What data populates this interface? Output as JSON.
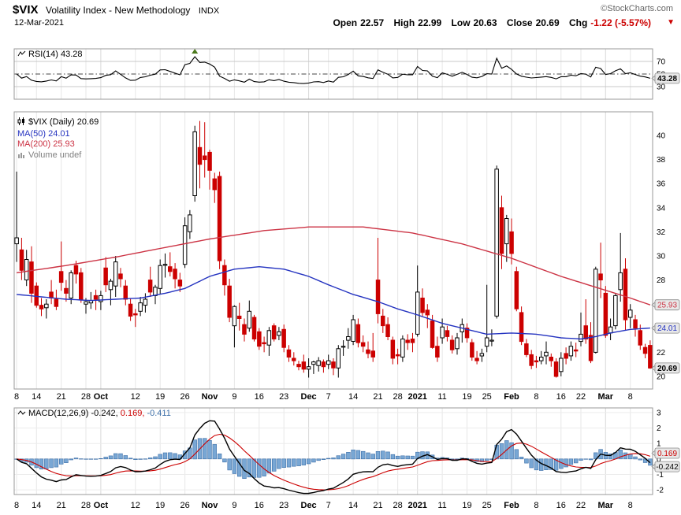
{
  "header": {
    "symbol": "$VIX",
    "title": "Volatility Index - New Methodology",
    "exchange": "INDX",
    "copyright": "©StockCharts.com",
    "date": "12-Mar-2021",
    "quote": {
      "open_label": "Open",
      "open": "22.57",
      "high_label": "High",
      "high": "22.99",
      "low_label": "Low",
      "low": "20.63",
      "close_label": "Close",
      "close": "20.69",
      "chg_label": "Chg",
      "chg": "-1.22 (-5.57%)"
    }
  },
  "legends": {
    "rsi": "RSI(14) 43.28",
    "price": "$VIX (Daily) 20.69",
    "ma50": "MA(50) 24.01",
    "ma200": "MA(200) 25.93",
    "volume": "Volume undef",
    "macd_name": "MACD(12,26,9)",
    "macd_value": "-0.242,",
    "signal_value": "0.169,",
    "hist_value": "-0.411"
  },
  "badges": {
    "rsi": "43.28",
    "ma200": "25.93",
    "ma50": "24.01",
    "close": "20.69",
    "macd_signal": "0.169",
    "macd_line": "-0.242"
  },
  "axes": {
    "rsi_yticks": [
      70,
      50,
      30
    ],
    "price_yticks": [
      40,
      38,
      36,
      34,
      32,
      30,
      28,
      26,
      24,
      22,
      20
    ],
    "macd_yticks": [
      3,
      2,
      1,
      0,
      -1,
      -2
    ],
    "xticks": [
      {
        "l": "8",
        "i": 0
      },
      {
        "l": "14",
        "i": 4
      },
      {
        "l": "21",
        "i": 9
      },
      {
        "l": "28",
        "i": 14
      },
      {
        "l": "Oct",
        "i": 17,
        "b": 1
      },
      {
        "l": "12",
        "i": 24
      },
      {
        "l": "19",
        "i": 29
      },
      {
        "l": "26",
        "i": 34
      },
      {
        "l": "Nov",
        "i": 39,
        "b": 1
      },
      {
        "l": "9",
        "i": 44
      },
      {
        "l": "16",
        "i": 49
      },
      {
        "l": "23",
        "i": 54
      },
      {
        "l": "Dec",
        "i": 59,
        "b": 1
      },
      {
        "l": "7",
        "i": 63
      },
      {
        "l": "14",
        "i": 68
      },
      {
        "l": "21",
        "i": 73
      },
      {
        "l": "28",
        "i": 77
      },
      {
        "l": "2021",
        "i": 81,
        "b": 1
      },
      {
        "l": "11",
        "i": 86
      },
      {
        "l": "19",
        "i": 91
      },
      {
        "l": "25",
        "i": 95
      },
      {
        "l": "Feb",
        "i": 100,
        "b": 1
      },
      {
        "l": "8",
        "i": 105
      },
      {
        "l": "16",
        "i": 110
      },
      {
        "l": "22",
        "i": 114
      },
      {
        "l": "Mar",
        "i": 119,
        "b": 1
      },
      {
        "l": "8",
        "i": 124
      }
    ]
  },
  "colors": {
    "candle_down": "#cc0000",
    "candle_up_fill": "#ffffff",
    "candle_up_stroke": "#000000",
    "ma50": "#2433c0",
    "ma200": "#cc3344",
    "rsi_line": "#000000",
    "macd_line": "#000000",
    "signal_line": "#cc0000",
    "hist_fill": "#79a7d4",
    "hist_stroke": "#3d6fa8",
    "grid": "#e7e7e7",
    "grid_major": "#d8d8d8",
    "border": "#999999",
    "badge_bg": "#e8e8e8",
    "badge_border": "#888888",
    "hline": "#c8c8c8",
    "dashdot": "#444444",
    "marker": "#4c7a1e",
    "chg": "#cc0000"
  },
  "chart_data": {
    "type": "candlestick",
    "title": "$VIX (Daily)",
    "rsi_period": 14,
    "macd_params": [
      12,
      26,
      9
    ],
    "last_values": {
      "close": 20.69,
      "rsi": 43.28,
      "ma50": 24.01,
      "ma200": 25.93,
      "macd": -0.242,
      "signal": 0.169,
      "histogram": -0.411
    },
    "price_range": [
      18.95,
      41.96
    ],
    "rsi_range": [
      10,
      90
    ],
    "macd_range": [
      -2.3,
      3.3
    ],
    "rsi_marker_index": 36,
    "dates": [
      "2020-09-08",
      "2020-09-09",
      "2020-09-10",
      "2020-09-11",
      "2020-09-14",
      "2020-09-15",
      "2020-09-16",
      "2020-09-17",
      "2020-09-18",
      "2020-09-21",
      "2020-09-22",
      "2020-09-23",
      "2020-09-24",
      "2020-09-25",
      "2020-09-28",
      "2020-09-29",
      "2020-09-30",
      "2020-10-01",
      "2020-10-02",
      "2020-10-05",
      "2020-10-06",
      "2020-10-07",
      "2020-10-08",
      "2020-10-09",
      "2020-10-12",
      "2020-10-13",
      "2020-10-14",
      "2020-10-15",
      "2020-10-16",
      "2020-10-19",
      "2020-10-20",
      "2020-10-21",
      "2020-10-22",
      "2020-10-23",
      "2020-10-26",
      "2020-10-27",
      "2020-10-28",
      "2020-10-29",
      "2020-10-30",
      "2020-11-02",
      "2020-11-03",
      "2020-11-04",
      "2020-11-05",
      "2020-11-06",
      "2020-11-09",
      "2020-11-10",
      "2020-11-11",
      "2020-11-12",
      "2020-11-13",
      "2020-11-16",
      "2020-11-17",
      "2020-11-18",
      "2020-11-19",
      "2020-11-20",
      "2020-11-23",
      "2020-11-24",
      "2020-11-25",
      "2020-11-27",
      "2020-11-30",
      "2020-12-01",
      "2020-12-02",
      "2020-12-03",
      "2020-12-04",
      "2020-12-07",
      "2020-12-08",
      "2020-12-09",
      "2020-12-10",
      "2020-12-11",
      "2020-12-14",
      "2020-12-15",
      "2020-12-16",
      "2020-12-17",
      "2020-12-18",
      "2020-12-21",
      "2020-12-22",
      "2020-12-23",
      "2020-12-24",
      "2020-12-28",
      "2020-12-29",
      "2020-12-30",
      "2020-12-31",
      "2021-01-04",
      "2021-01-05",
      "2021-01-06",
      "2021-01-07",
      "2021-01-08",
      "2021-01-11",
      "2021-01-12",
      "2021-01-13",
      "2021-01-14",
      "2021-01-15",
      "2021-01-19",
      "2021-01-20",
      "2021-01-21",
      "2021-01-22",
      "2021-01-25",
      "2021-01-26",
      "2021-01-27",
      "2021-01-28",
      "2021-01-29",
      "2021-02-01",
      "2021-02-02",
      "2021-02-03",
      "2021-02-04",
      "2021-02-05",
      "2021-02-08",
      "2021-02-09",
      "2021-02-10",
      "2021-02-11",
      "2021-02-12",
      "2021-02-16",
      "2021-02-17",
      "2021-02-18",
      "2021-02-19",
      "2021-02-22",
      "2021-02-23",
      "2021-02-24",
      "2021-02-25",
      "2021-02-26",
      "2021-03-01",
      "2021-03-02",
      "2021-03-03",
      "2021-03-04",
      "2021-03-05",
      "2021-03-08",
      "2021-03-09",
      "2021-03-10",
      "2021-03-11",
      "2021-03-12"
    ],
    "ohlc": [
      [
        31.0,
        37.0,
        29.5,
        31.5
      ],
      [
        30.5,
        31.5,
        28.0,
        28.8
      ],
      [
        28.0,
        30.5,
        27.5,
        29.7
      ],
      [
        29.5,
        30.8,
        26.1,
        26.9
      ],
      [
        27.5,
        27.8,
        25.7,
        25.9
      ],
      [
        25.9,
        26.5,
        25.0,
        25.6
      ],
      [
        25.7,
        26.4,
        24.8,
        26.0
      ],
      [
        27.0,
        28.0,
        26.0,
        26.5
      ],
      [
        26.4,
        27.2,
        25.5,
        25.8
      ],
      [
        28.7,
        31.2,
        27.1,
        27.8
      ],
      [
        27.3,
        28.0,
        26.2,
        26.9
      ],
      [
        26.5,
        28.8,
        26.0,
        28.6
      ],
      [
        29.2,
        29.6,
        27.7,
        28.5
      ],
      [
        28.6,
        29.0,
        26.1,
        26.4
      ],
      [
        26.0,
        26.5,
        25.2,
        26.2
      ],
      [
        26.1,
        27.0,
        25.6,
        26.3
      ],
      [
        26.7,
        27.2,
        25.5,
        26.4
      ],
      [
        26.2,
        27.1,
        25.5,
        26.7
      ],
      [
        29.0,
        29.9,
        27.0,
        27.6
      ],
      [
        27.2,
        28.1,
        25.9,
        27.9
      ],
      [
        27.5,
        30.0,
        26.6,
        29.5
      ],
      [
        28.5,
        29.0,
        27.4,
        28.1
      ],
      [
        27.5,
        28.0,
        25.9,
        26.4
      ],
      [
        26.0,
        26.5,
        24.6,
        25.0
      ],
      [
        25.2,
        25.6,
        24.1,
        25.1
      ],
      [
        25.4,
        26.6,
        25.0,
        26.1
      ],
      [
        25.9,
        26.9,
        25.3,
        26.4
      ],
      [
        28.0,
        29.1,
        26.6,
        27.0
      ],
      [
        26.7,
        27.6,
        26.0,
        27.4
      ],
      [
        27.3,
        29.7,
        26.8,
        29.2
      ],
      [
        29.3,
        30.2,
        28.2,
        29.3
      ],
      [
        29.1,
        30.3,
        28.3,
        28.7
      ],
      [
        28.9,
        29.4,
        27.3,
        28.1
      ],
      [
        28.0,
        28.6,
        27.0,
        27.5
      ],
      [
        29.3,
        33.2,
        29.0,
        32.5
      ],
      [
        32.0,
        33.8,
        31.4,
        33.4
      ],
      [
        35.0,
        40.8,
        34.5,
        40.3
      ],
      [
        39.0,
        41.2,
        35.6,
        37.6
      ],
      [
        38.3,
        41.1,
        36.5,
        38.0
      ],
      [
        38.6,
        38.8,
        35.5,
        37.1
      ],
      [
        36.4,
        36.9,
        34.4,
        35.5
      ],
      [
        36.6,
        37.0,
        28.9,
        29.6
      ],
      [
        29.2,
        29.7,
        26.7,
        27.6
      ],
      [
        27.5,
        28.1,
        24.5,
        24.9
      ],
      [
        24.2,
        25.9,
        22.4,
        25.8
      ],
      [
        25.0,
        26.1,
        23.8,
        24.8
      ],
      [
        24.3,
        24.8,
        22.9,
        23.5
      ],
      [
        24.0,
        26.3,
        23.7,
        25.4
      ],
      [
        24.9,
        25.1,
        22.9,
        23.1
      ],
      [
        23.7,
        24.0,
        22.2,
        22.5
      ],
      [
        22.8,
        23.3,
        22.0,
        22.7
      ],
      [
        22.6,
        24.1,
        21.7,
        23.8
      ],
      [
        24.2,
        24.4,
        22.9,
        23.1
      ],
      [
        23.4,
        24.1,
        23.0,
        23.7
      ],
      [
        23.9,
        24.3,
        22.0,
        22.4
      ],
      [
        22.2,
        22.6,
        21.2,
        21.6
      ],
      [
        21.5,
        22.0,
        20.9,
        21.3
      ],
      [
        21.0,
        21.3,
        20.5,
        20.8
      ],
      [
        21.2,
        21.8,
        20.3,
        20.6
      ],
      [
        20.6,
        21.5,
        19.9,
        20.8
      ],
      [
        21.0,
        21.3,
        20.2,
        21.2
      ],
      [
        20.9,
        21.6,
        20.4,
        21.3
      ],
      [
        21.2,
        21.4,
        20.3,
        20.8
      ],
      [
        21.0,
        21.8,
        20.6,
        21.3
      ],
      [
        21.2,
        21.5,
        20.1,
        20.7
      ],
      [
        20.7,
        22.6,
        19.9,
        22.3
      ],
      [
        22.5,
        23.0,
        21.7,
        22.5
      ],
      [
        23.0,
        24.0,
        22.3,
        23.3
      ],
      [
        22.9,
        25.1,
        22.6,
        24.7
      ],
      [
        24.3,
        24.8,
        22.4,
        22.8
      ],
      [
        22.8,
        23.4,
        22.0,
        22.5
      ],
      [
        22.2,
        22.9,
        21.5,
        21.9
      ],
      [
        22.1,
        23.6,
        21.2,
        21.6
      ],
      [
        28.0,
        31.5,
        24.4,
        25.2
      ],
      [
        25.0,
        25.6,
        23.6,
        24.2
      ],
      [
        24.3,
        24.9,
        23.0,
        23.3
      ],
      [
        23.0,
        23.3,
        21.0,
        21.5
      ],
      [
        21.8,
        22.3,
        21.0,
        21.7
      ],
      [
        21.6,
        23.4,
        21.2,
        23.1
      ],
      [
        23.0,
        23.5,
        22.2,
        22.8
      ],
      [
        23.1,
        23.6,
        22.0,
        22.8
      ],
      [
        23.5,
        29.2,
        23.3,
        27.0
      ],
      [
        26.5,
        27.3,
        25.0,
        25.3
      ],
      [
        25.5,
        26.0,
        24.0,
        25.1
      ],
      [
        24.6,
        25.1,
        22.3,
        22.4
      ],
      [
        22.5,
        23.3,
        21.2,
        21.6
      ],
      [
        23.2,
        24.8,
        22.7,
        24.1
      ],
      [
        23.8,
        24.2,
        22.9,
        23.3
      ],
      [
        23.0,
        23.4,
        21.9,
        22.2
      ],
      [
        22.3,
        23.6,
        21.8,
        23.2
      ],
      [
        23.7,
        24.8,
        22.8,
        24.3
      ],
      [
        24.0,
        24.4,
        22.8,
        23.2
      ],
      [
        22.8,
        23.1,
        21.3,
        21.6
      ],
      [
        21.5,
        22.1,
        21.0,
        21.3
      ],
      [
        21.7,
        22.3,
        21.2,
        21.9
      ],
      [
        22.5,
        27.6,
        22.0,
        23.2
      ],
      [
        23.0,
        23.9,
        22.5,
        23.0
      ],
      [
        25.0,
        37.5,
        24.8,
        37.2
      ],
      [
        34.0,
        35.0,
        28.9,
        30.2
      ],
      [
        31.0,
        33.4,
        29.5,
        33.1
      ],
      [
        32.0,
        33.1,
        29.3,
        30.2
      ],
      [
        28.7,
        29.1,
        25.4,
        25.6
      ],
      [
        25.3,
        25.8,
        22.6,
        22.9
      ],
      [
        22.7,
        23.1,
        21.6,
        21.8
      ],
      [
        21.8,
        22.2,
        20.6,
        20.9
      ],
      [
        21.3,
        21.7,
        20.7,
        21.2
      ],
      [
        21.3,
        22.1,
        21.0,
        21.6
      ],
      [
        21.7,
        22.9,
        21.0,
        22.0
      ],
      [
        21.6,
        21.9,
        20.8,
        21.3
      ],
      [
        21.2,
        21.5,
        19.9,
        20.0
      ],
      [
        20.4,
        22.0,
        20.0,
        21.5
      ],
      [
        21.9,
        22.4,
        21.0,
        21.5
      ],
      [
        21.7,
        22.9,
        21.3,
        22.5
      ],
      [
        22.2,
        22.8,
        21.6,
        22.1
      ],
      [
        22.9,
        25.3,
        22.5,
        23.5
      ],
      [
        24.2,
        26.4,
        22.7,
        23.1
      ],
      [
        23.4,
        24.5,
        21.1,
        21.3
      ],
      [
        22.0,
        29.1,
        21.9,
        28.9
      ],
      [
        28.5,
        31.1,
        26.5,
        28.0
      ],
      [
        26.9,
        27.5,
        23.2,
        23.4
      ],
      [
        23.6,
        24.8,
        23.0,
        24.1
      ],
      [
        24.2,
        26.9,
        23.9,
        26.7
      ],
      [
        27.2,
        31.9,
        26.2,
        28.6
      ],
      [
        28.9,
        29.8,
        23.8,
        24.7
      ],
      [
        24.9,
        26.0,
        24.0,
        25.5
      ],
      [
        24.7,
        25.1,
        23.3,
        24.0
      ],
      [
        23.8,
        24.3,
        22.2,
        22.6
      ],
      [
        22.4,
        22.7,
        21.5,
        21.9
      ],
      [
        22.57,
        22.99,
        20.63,
        20.69
      ]
    ],
    "overlays": {
      "ma50_keypoints": [
        [
          0,
          26.8
        ],
        [
          5,
          26.6
        ],
        [
          10,
          26.4
        ],
        [
          15,
          26.3
        ],
        [
          20,
          26.4
        ],
        [
          25,
          26.5
        ],
        [
          30,
          26.9
        ],
        [
          34,
          27.3
        ],
        [
          39,
          28.3
        ],
        [
          44,
          28.9
        ],
        [
          49,
          29.1
        ],
        [
          54,
          28.9
        ],
        [
          59,
          28.3
        ],
        [
          63,
          27.6
        ],
        [
          68,
          26.8
        ],
        [
          73,
          26.2
        ],
        [
          77,
          25.6
        ],
        [
          81,
          25.1
        ],
        [
          86,
          24.4
        ],
        [
          91,
          23.9
        ],
        [
          95,
          23.5
        ],
        [
          100,
          23.6
        ],
        [
          105,
          23.5
        ],
        [
          110,
          23.2
        ],
        [
          114,
          23.1
        ],
        [
          117,
          23.3
        ],
        [
          120,
          23.6
        ],
        [
          124,
          23.9
        ],
        [
          128,
          24.01
        ]
      ],
      "ma200_keypoints": [
        [
          0,
          28.6
        ],
        [
          10,
          29.2
        ],
        [
          20,
          29.9
        ],
        [
          30,
          30.7
        ],
        [
          39,
          31.4
        ],
        [
          50,
          32.1
        ],
        [
          59,
          32.4
        ],
        [
          70,
          32.4
        ],
        [
          80,
          31.9
        ],
        [
          90,
          31.0
        ],
        [
          100,
          29.8
        ],
        [
          110,
          28.3
        ],
        [
          117,
          27.4
        ],
        [
          124,
          26.5
        ],
        [
          128,
          25.93
        ]
      ]
    }
  }
}
